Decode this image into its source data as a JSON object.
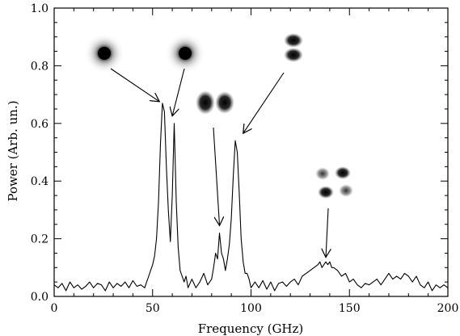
{
  "chart_data": {
    "type": "line",
    "title": "",
    "xlabel": "Frequency (GHz)",
    "ylabel": "Power (Arb. un.)",
    "xlim": [
      0,
      200
    ],
    "ylim": [
      0,
      1.0
    ],
    "x_ticks": [
      0,
      50,
      100,
      150,
      200
    ],
    "x_tick_labels": [
      "0",
      "50",
      "100",
      "150",
      "200"
    ],
    "y_ticks": [
      0.0,
      0.2,
      0.4,
      0.6,
      0.8,
      1.0
    ],
    "y_tick_labels": [
      "0.0",
      "0.2",
      "0.4",
      "0.6",
      "0.8",
      "1.0"
    ],
    "grid": false,
    "series": [
      {
        "color": "#000000",
        "x": [
          0,
          2,
          4,
          6,
          8,
          10,
          12,
          14,
          16,
          18,
          20,
          22,
          24,
          26,
          28,
          30,
          32,
          34,
          36,
          38,
          40,
          42,
          44,
          46,
          47,
          48,
          49,
          50,
          51,
          52,
          53,
          54,
          55,
          56,
          57,
          58,
          59,
          60,
          61,
          62,
          63,
          64,
          65,
          66,
          67,
          68,
          70,
          72,
          74,
          76,
          78,
          80,
          81,
          82,
          83,
          84,
          85,
          86,
          87,
          88,
          89,
          90,
          91,
          92,
          93,
          94,
          95,
          96,
          97,
          98,
          99,
          100,
          102,
          104,
          106,
          108,
          110,
          112,
          114,
          116,
          118,
          120,
          122,
          124,
          126,
          128,
          130,
          132,
          134,
          135,
          136,
          137,
          138,
          139,
          140,
          141,
          142,
          144,
          146,
          148,
          150,
          152,
          154,
          156,
          158,
          160,
          162,
          164,
          166,
          168,
          170,
          172,
          174,
          176,
          178,
          180,
          182,
          184,
          186,
          188,
          190,
          192,
          194,
          196,
          198,
          200
        ],
        "y": [
          0.04,
          0.03,
          0.045,
          0.02,
          0.05,
          0.03,
          0.04,
          0.025,
          0.035,
          0.05,
          0.03,
          0.045,
          0.04,
          0.02,
          0.05,
          0.03,
          0.045,
          0.035,
          0.05,
          0.03,
          0.055,
          0.035,
          0.04,
          0.03,
          0.05,
          0.07,
          0.09,
          0.11,
          0.14,
          0.2,
          0.33,
          0.53,
          0.67,
          0.64,
          0.45,
          0.3,
          0.19,
          0.35,
          0.6,
          0.33,
          0.17,
          0.09,
          0.07,
          0.05,
          0.07,
          0.03,
          0.06,
          0.03,
          0.05,
          0.08,
          0.04,
          0.06,
          0.1,
          0.15,
          0.13,
          0.22,
          0.15,
          0.13,
          0.09,
          0.13,
          0.18,
          0.27,
          0.42,
          0.54,
          0.5,
          0.36,
          0.2,
          0.12,
          0.08,
          0.08,
          0.06,
          0.03,
          0.05,
          0.03,
          0.055,
          0.025,
          0.05,
          0.02,
          0.045,
          0.05,
          0.035,
          0.05,
          0.06,
          0.04,
          0.07,
          0.08,
          0.09,
          0.1,
          0.11,
          0.12,
          0.1,
          0.11,
          0.12,
          0.11,
          0.12,
          0.1,
          0.1,
          0.09,
          0.07,
          0.08,
          0.05,
          0.06,
          0.04,
          0.03,
          0.045,
          0.04,
          0.05,
          0.06,
          0.04,
          0.06,
          0.08,
          0.06,
          0.07,
          0.06,
          0.08,
          0.07,
          0.05,
          0.07,
          0.04,
          0.03,
          0.05,
          0.02,
          0.04,
          0.03,
          0.04,
          0.03
        ]
      }
    ],
    "annotations": [
      {
        "type": "mode-image",
        "pattern": "single-spot",
        "arrow_to": [
          53.5,
          0.67
        ]
      },
      {
        "type": "mode-image",
        "pattern": "single-spot",
        "arrow_to": [
          60,
          0.62
        ]
      },
      {
        "type": "mode-image",
        "pattern": "two-lobes-horizontal",
        "arrow_to": [
          84,
          0.24
        ]
      },
      {
        "type": "mode-image",
        "pattern": "two-lobes-vertical",
        "arrow_to": [
          96,
          0.56
        ]
      },
      {
        "type": "mode-image",
        "pattern": "four-lobes",
        "arrow_to": [
          138,
          0.13
        ]
      }
    ]
  }
}
